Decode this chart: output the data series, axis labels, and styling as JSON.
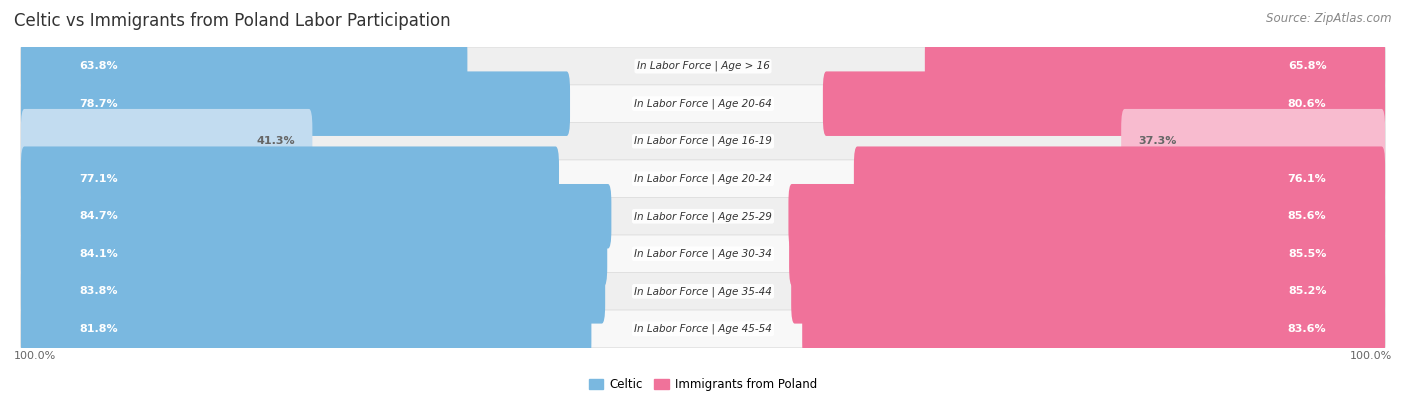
{
  "title": "Celtic vs Immigrants from Poland Labor Participation",
  "source": "Source: ZipAtlas.com",
  "categories": [
    "In Labor Force | Age > 16",
    "In Labor Force | Age 20-64",
    "In Labor Force | Age 16-19",
    "In Labor Force | Age 20-24",
    "In Labor Force | Age 25-29",
    "In Labor Force | Age 30-34",
    "In Labor Force | Age 35-44",
    "In Labor Force | Age 45-54"
  ],
  "celtic_values": [
    63.8,
    78.7,
    41.3,
    77.1,
    84.7,
    84.1,
    83.8,
    81.8
  ],
  "poland_values": [
    65.8,
    80.6,
    37.3,
    76.1,
    85.6,
    85.5,
    85.2,
    83.6
  ],
  "celtic_color": "#7AB8E0",
  "celtic_color_light": "#C2DCF0",
  "poland_color": "#F0729A",
  "poland_color_light": "#F8BBCF",
  "row_bg_odd": "#EFEFEF",
  "row_bg_even": "#F8F8F8",
  "row_border": "#DDDDDD",
  "label_white": "#FFFFFF",
  "label_dark": "#666666",
  "max_value": 100.0,
  "legend_celtic": "Celtic",
  "legend_poland": "Immigrants from Poland",
  "x_tick_left": "100.0%",
  "x_tick_right": "100.0%",
  "title_fontsize": 12,
  "source_fontsize": 8.5,
  "value_fontsize": 8,
  "category_fontsize": 7.5,
  "legend_fontsize": 8.5
}
